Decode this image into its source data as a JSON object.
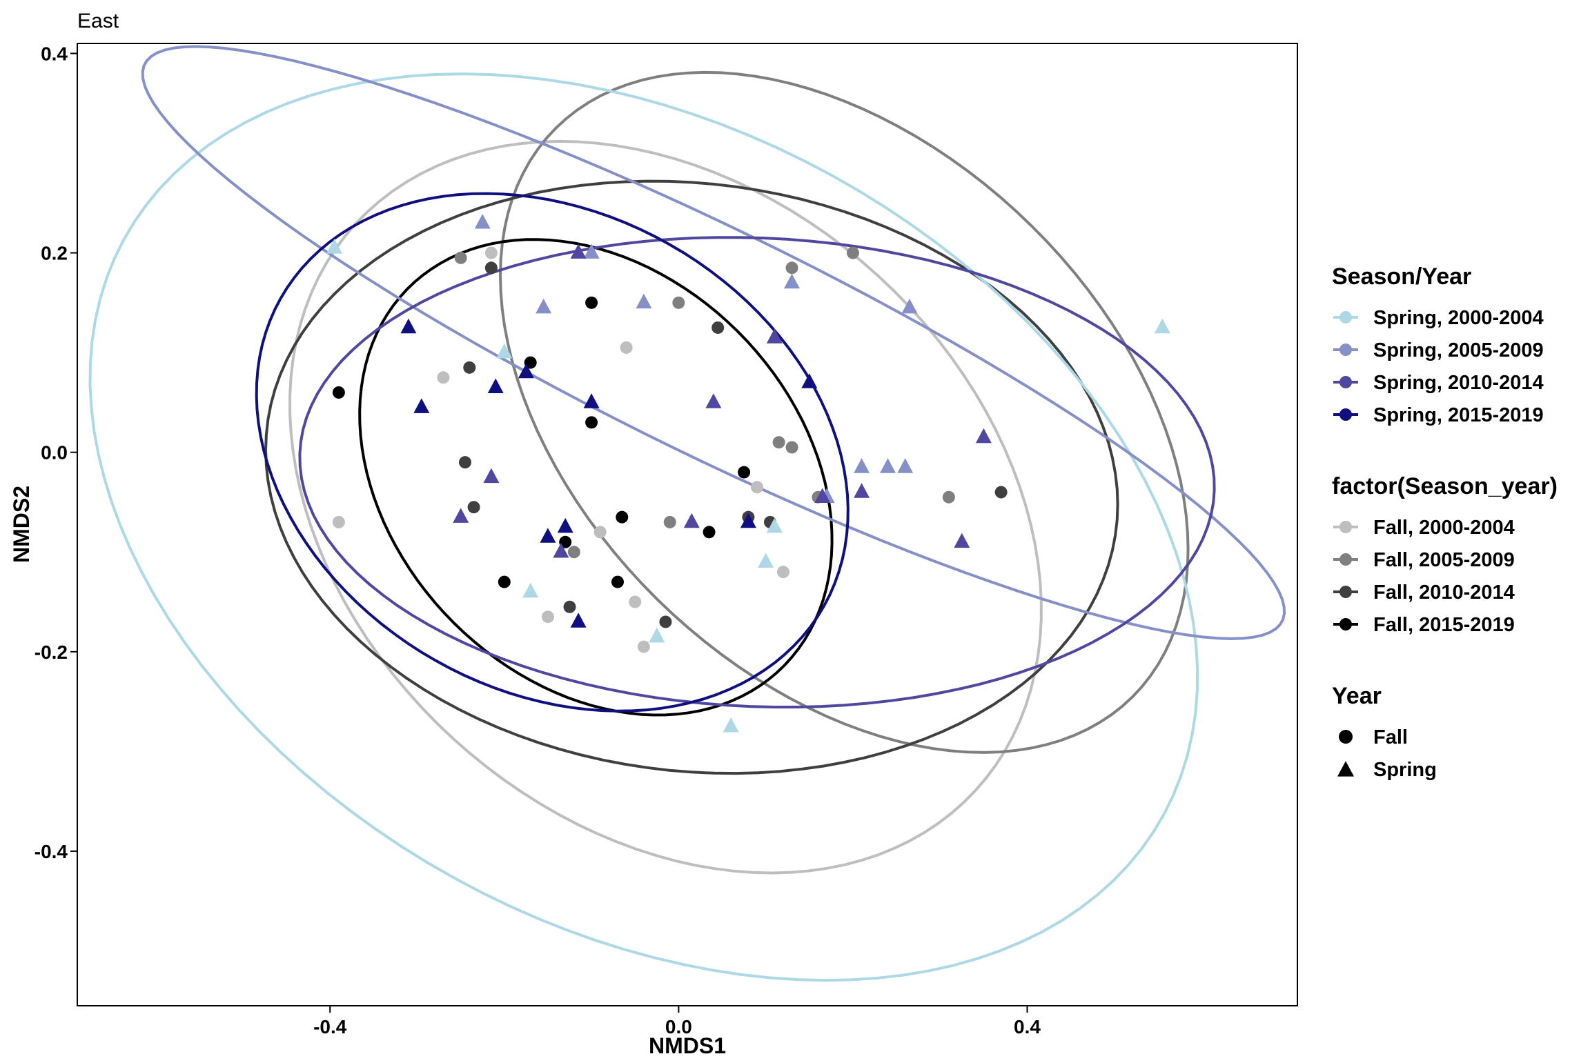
{
  "chart_data": {
    "type": "scatter",
    "title": "East",
    "xlabel": "NMDS1",
    "ylabel": "NMDS2",
    "xlim": [
      -0.69,
      0.71
    ],
    "ylim": [
      -0.555,
      0.41
    ],
    "xticks": [
      -0.4,
      0.0,
      0.4
    ],
    "yticks": [
      0.4,
      0.2,
      0.0,
      -0.2,
      -0.4
    ],
    "xtick_labels": [
      "-0.4",
      "0.0",
      "0.4"
    ],
    "ytick_labels": [
      "0.4",
      "0.2",
      "0.0",
      "-0.2",
      "-0.4"
    ],
    "grid": false,
    "legend_position": "right",
    "groups": [
      {
        "key": "sp0004",
        "label": "Spring, 2000-2004",
        "color": "#ADD8E6",
        "shape": "triangle"
      },
      {
        "key": "sp0509",
        "label": "Spring, 2005-2009",
        "color": "#8590C8",
        "shape": "triangle"
      },
      {
        "key": "sp1014",
        "label": "Spring, 2010-2014",
        "color": "#4F47A0",
        "shape": "triangle"
      },
      {
        "key": "sp1519",
        "label": "Spring, 2015-2019",
        "color": "#0F0F80",
        "shape": "triangle"
      },
      {
        "key": "fa0004",
        "label": "Fall, 2000-2004",
        "color": "#BEBEBE",
        "shape": "circle"
      },
      {
        "key": "fa0509",
        "label": "Fall, 2005-2009",
        "color": "#7F7F7F",
        "shape": "circle"
      },
      {
        "key": "fa1014",
        "label": "Fall, 2010-2014",
        "color": "#3F3F3F",
        "shape": "circle"
      },
      {
        "key": "fa1519",
        "label": "Fall, 2015-2019",
        "color": "#000000",
        "shape": "circle"
      }
    ],
    "ellipses": [
      {
        "group": "fa0004",
        "cx": -0.015,
        "cy": -0.055,
        "rx": 0.46,
        "ry": 0.33,
        "angle": -30
      },
      {
        "group": "fa0509",
        "cx": 0.19,
        "cy": 0.04,
        "rx": 0.44,
        "ry": 0.28,
        "angle": -35
      },
      {
        "group": "fa1014",
        "cx": 0.015,
        "cy": -0.025,
        "rx": 0.49,
        "ry": 0.295,
        "angle": -5
      },
      {
        "group": "fa1519",
        "cx": -0.095,
        "cy": -0.025,
        "rx": 0.29,
        "ry": 0.215,
        "angle": -32
      },
      {
        "group": "sp0004",
        "cx": -0.04,
        "cy": -0.075,
        "rx": 0.665,
        "ry": 0.41,
        "angle": -22
      },
      {
        "group": "sp0509",
        "cx": 0.04,
        "cy": 0.11,
        "rx": 0.71,
        "ry": 0.115,
        "angle": -23
      },
      {
        "group": "sp1014",
        "cx": 0.09,
        "cy": -0.02,
        "rx": 0.525,
        "ry": 0.235,
        "angle": -2
      },
      {
        "group": "sp1519",
        "cx": -0.145,
        "cy": 0.0,
        "rx": 0.35,
        "ry": 0.245,
        "angle": -20
      }
    ],
    "series": [
      {
        "group": "fa0004",
        "points": [
          [
            -0.39,
            -0.07
          ],
          [
            -0.27,
            0.075
          ],
          [
            -0.215,
            0.2
          ],
          [
            -0.06,
            0.105
          ],
          [
            -0.09,
            -0.08
          ],
          [
            -0.15,
            -0.165
          ],
          [
            -0.05,
            -0.15
          ],
          [
            -0.04,
            -0.195
          ],
          [
            0.09,
            -0.035
          ],
          [
            0.12,
            -0.12
          ]
        ]
      },
      {
        "group": "fa0509",
        "points": [
          [
            -0.25,
            0.195
          ],
          [
            0.0,
            0.15
          ],
          [
            0.13,
            0.185
          ],
          [
            0.2,
            0.2
          ],
          [
            0.115,
            0.01
          ],
          [
            0.13,
            0.005
          ],
          [
            -0.01,
            -0.07
          ],
          [
            0.16,
            -0.045
          ],
          [
            0.31,
            -0.045
          ],
          [
            -0.12,
            -0.1
          ]
        ]
      },
      {
        "group": "fa1014",
        "points": [
          [
            -0.215,
            0.185
          ],
          [
            -0.24,
            0.085
          ],
          [
            -0.245,
            -0.01
          ],
          [
            -0.235,
            -0.055
          ],
          [
            -0.125,
            -0.155
          ],
          [
            -0.015,
            -0.17
          ],
          [
            0.045,
            0.125
          ],
          [
            0.08,
            -0.065
          ],
          [
            0.105,
            -0.07
          ],
          [
            0.37,
            -0.04
          ]
        ]
      },
      {
        "group": "fa1519",
        "points": [
          [
            -0.39,
            0.06
          ],
          [
            -0.17,
            0.09
          ],
          [
            -0.1,
            0.15
          ],
          [
            -0.1,
            0.03
          ],
          [
            -0.065,
            -0.065
          ],
          [
            -0.13,
            -0.09
          ],
          [
            -0.2,
            -0.13
          ],
          [
            -0.07,
            -0.13
          ],
          [
            0.035,
            -0.08
          ],
          [
            0.075,
            -0.02
          ]
        ]
      },
      {
        "group": "sp0004",
        "points": [
          [
            -0.395,
            0.205
          ],
          [
            -0.2,
            0.1
          ],
          [
            -0.17,
            -0.14
          ],
          [
            -0.025,
            -0.185
          ],
          [
            0.1,
            -0.11
          ],
          [
            0.11,
            -0.075
          ],
          [
            0.06,
            -0.275
          ],
          [
            0.555,
            0.125
          ]
        ]
      },
      {
        "group": "sp0509",
        "points": [
          [
            -0.225,
            0.23
          ],
          [
            -0.155,
            0.145
          ],
          [
            -0.1,
            0.2
          ],
          [
            -0.04,
            0.15
          ],
          [
            0.13,
            0.17
          ],
          [
            0.265,
            0.145
          ],
          [
            0.21,
            -0.015
          ],
          [
            0.24,
            -0.015
          ],
          [
            0.26,
            -0.015
          ],
          [
            0.17,
            -0.045
          ]
        ]
      },
      {
        "group": "sp1014",
        "points": [
          [
            -0.25,
            -0.065
          ],
          [
            -0.215,
            -0.025
          ],
          [
            -0.115,
            0.2
          ],
          [
            0.04,
            0.05
          ],
          [
            0.11,
            0.115
          ],
          [
            0.015,
            -0.07
          ],
          [
            -0.135,
            -0.1
          ],
          [
            0.21,
            -0.04
          ],
          [
            0.165,
            -0.045
          ],
          [
            0.35,
            0.015
          ],
          [
            0.325,
            -0.09
          ]
        ]
      },
      {
        "group": "sp1519",
        "points": [
          [
            -0.31,
            0.125
          ],
          [
            -0.295,
            0.045
          ],
          [
            -0.21,
            0.065
          ],
          [
            -0.175,
            0.08
          ],
          [
            -0.1,
            0.05
          ],
          [
            -0.15,
            -0.085
          ],
          [
            -0.13,
            -0.075
          ],
          [
            -0.115,
            -0.17
          ],
          [
            0.08,
            -0.07
          ],
          [
            0.15,
            0.07
          ]
        ]
      }
    ],
    "legends": [
      {
        "title": "Season/Year",
        "items": [
          {
            "label": "Spring, 2000-2004",
            "color": "#ADD8E6",
            "kind": "line-point"
          },
          {
            "label": "Spring, 2005-2009",
            "color": "#8590C8",
            "kind": "line-point"
          },
          {
            "label": "Spring, 2010-2014",
            "color": "#4F47A0",
            "kind": "line-point"
          },
          {
            "label": "Spring, 2015-2019",
            "color": "#0F0F80",
            "kind": "line-point"
          }
        ]
      },
      {
        "title": "factor(Season_year)",
        "items": [
          {
            "label": "Fall, 2000-2004",
            "color": "#BEBEBE",
            "kind": "line-point"
          },
          {
            "label": "Fall, 2005-2009",
            "color": "#7F7F7F",
            "kind": "line-point"
          },
          {
            "label": "Fall, 2010-2014",
            "color": "#3F3F3F",
            "kind": "line-point"
          },
          {
            "label": "Fall, 2015-2019",
            "color": "#000000",
            "kind": "line-point"
          }
        ]
      },
      {
        "title": "Year",
        "items": [
          {
            "label": "Fall",
            "color": "#000000",
            "kind": "circle"
          },
          {
            "label": "Spring",
            "color": "#000000",
            "kind": "triangle"
          }
        ]
      }
    ]
  }
}
